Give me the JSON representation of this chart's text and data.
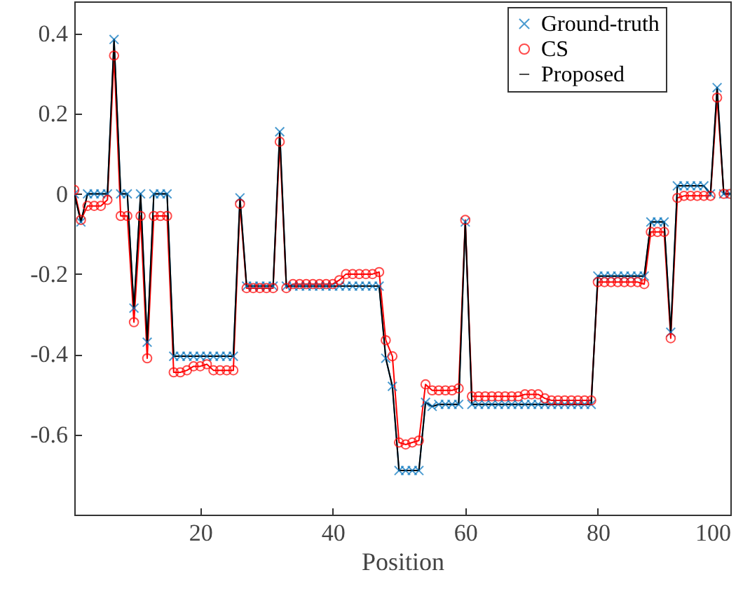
{
  "chart_data": {
    "type": "line",
    "xlabel": "Position",
    "xlim": [
      1,
      100
    ],
    "xticks": [
      20,
      40,
      60,
      80,
      100
    ],
    "ylim": [
      -0.8,
      0.48
    ],
    "yticks": [
      -0.6,
      -0.4,
      -0.2,
      0,
      0.2,
      0.4
    ],
    "grid": false,
    "legend": "top right",
    "x": [
      1,
      2,
      3,
      4,
      5,
      6,
      7,
      8,
      9,
      10,
      11,
      12,
      13,
      14,
      15,
      16,
      17,
      18,
      19,
      20,
      21,
      22,
      23,
      24,
      25,
      26,
      27,
      28,
      29,
      30,
      31,
      32,
      33,
      34,
      35,
      36,
      37,
      38,
      39,
      40,
      41,
      42,
      43,
      44,
      45,
      46,
      47,
      48,
      49,
      50,
      51,
      52,
      53,
      54,
      55,
      56,
      57,
      58,
      59,
      60,
      61,
      62,
      63,
      64,
      65,
      66,
      67,
      68,
      69,
      70,
      71,
      72,
      73,
      74,
      75,
      76,
      77,
      78,
      79,
      80,
      81,
      82,
      83,
      84,
      85,
      86,
      87,
      88,
      89,
      90,
      91,
      92,
      93,
      94,
      95,
      96,
      97,
      98,
      99,
      100
    ],
    "series": [
      {
        "name": "Ground-truth",
        "color": "#0072bd",
        "marker": "cross",
        "values": [
          0,
          -0.07,
          0,
          0,
          0,
          0,
          0.385,
          0,
          0,
          -0.285,
          0,
          -0.37,
          0,
          0,
          0,
          -0.405,
          -0.405,
          -0.405,
          -0.405,
          -0.405,
          -0.405,
          -0.405,
          -0.405,
          -0.405,
          -0.405,
          -0.01,
          -0.23,
          -0.23,
          -0.23,
          -0.23,
          -0.23,
          0.155,
          -0.23,
          -0.23,
          -0.23,
          -0.23,
          -0.23,
          -0.23,
          -0.23,
          -0.23,
          -0.23,
          -0.23,
          -0.23,
          -0.23,
          -0.23,
          -0.23,
          -0.23,
          -0.41,
          -0.48,
          -0.69,
          -0.69,
          -0.69,
          -0.69,
          -0.52,
          -0.53,
          -0.525,
          -0.525,
          -0.525,
          -0.525,
          -0.07,
          -0.525,
          -0.525,
          -0.525,
          -0.525,
          -0.525,
          -0.525,
          -0.525,
          -0.525,
          -0.525,
          -0.525,
          -0.525,
          -0.525,
          -0.525,
          -0.525,
          -0.525,
          -0.525,
          -0.525,
          -0.525,
          -0.525,
          -0.205,
          -0.205,
          -0.205,
          -0.205,
          -0.205,
          -0.205,
          -0.205,
          -0.205,
          -0.07,
          -0.07,
          -0.07,
          -0.345,
          0.02,
          0.02,
          0.02,
          0.02,
          0.02,
          0,
          0.265,
          0,
          0
        ]
      },
      {
        "name": "CS",
        "color": "#ff0000",
        "marker": "circle",
        "values": [
          0.01,
          -0.065,
          -0.03,
          -0.03,
          -0.03,
          -0.015,
          0.345,
          -0.055,
          -0.055,
          -0.32,
          -0.055,
          -0.41,
          -0.055,
          -0.055,
          -0.055,
          -0.445,
          -0.445,
          -0.44,
          -0.43,
          -0.43,
          -0.425,
          -0.44,
          -0.44,
          -0.44,
          -0.44,
          -0.025,
          -0.235,
          -0.235,
          -0.235,
          -0.235,
          -0.235,
          0.13,
          -0.235,
          -0.225,
          -0.225,
          -0.225,
          -0.225,
          -0.225,
          -0.225,
          -0.225,
          -0.215,
          -0.2,
          -0.2,
          -0.2,
          -0.2,
          -0.2,
          -0.195,
          -0.365,
          -0.405,
          -0.62,
          -0.625,
          -0.62,
          -0.615,
          -0.475,
          -0.49,
          -0.49,
          -0.49,
          -0.49,
          -0.485,
          -0.065,
          -0.505,
          -0.505,
          -0.505,
          -0.505,
          -0.505,
          -0.505,
          -0.505,
          -0.505,
          -0.5,
          -0.5,
          -0.5,
          -0.51,
          -0.515,
          -0.515,
          -0.515,
          -0.515,
          -0.515,
          -0.515,
          -0.515,
          -0.22,
          -0.22,
          -0.22,
          -0.22,
          -0.22,
          -0.22,
          -0.22,
          -0.225,
          -0.095,
          -0.095,
          -0.095,
          -0.36,
          -0.01,
          -0.005,
          -0.005,
          -0.005,
          -0.005,
          -0.005,
          0.24,
          0,
          0
        ]
      },
      {
        "name": "Proposed",
        "color": "#000000",
        "marker": "none",
        "values": [
          0,
          -0.07,
          0,
          0,
          0,
          0,
          0.385,
          0,
          0,
          -0.285,
          0,
          -0.37,
          0,
          0,
          0,
          -0.405,
          -0.405,
          -0.405,
          -0.405,
          -0.405,
          -0.405,
          -0.405,
          -0.405,
          -0.405,
          -0.405,
          -0.01,
          -0.23,
          -0.23,
          -0.23,
          -0.23,
          -0.23,
          0.155,
          -0.23,
          -0.23,
          -0.23,
          -0.23,
          -0.23,
          -0.23,
          -0.23,
          -0.23,
          -0.23,
          -0.23,
          -0.23,
          -0.23,
          -0.23,
          -0.23,
          -0.23,
          -0.41,
          -0.48,
          -0.69,
          -0.69,
          -0.69,
          -0.69,
          -0.52,
          -0.53,
          -0.525,
          -0.525,
          -0.525,
          -0.525,
          -0.07,
          -0.525,
          -0.525,
          -0.525,
          -0.525,
          -0.525,
          -0.525,
          -0.525,
          -0.525,
          -0.525,
          -0.525,
          -0.525,
          -0.525,
          -0.525,
          -0.525,
          -0.525,
          -0.525,
          -0.525,
          -0.525,
          -0.525,
          -0.205,
          -0.205,
          -0.205,
          -0.205,
          -0.205,
          -0.205,
          -0.205,
          -0.205,
          -0.07,
          -0.07,
          -0.07,
          -0.345,
          0.02,
          0.02,
          0.02,
          0.02,
          0.02,
          0,
          0.265,
          0,
          0
        ]
      }
    ]
  }
}
